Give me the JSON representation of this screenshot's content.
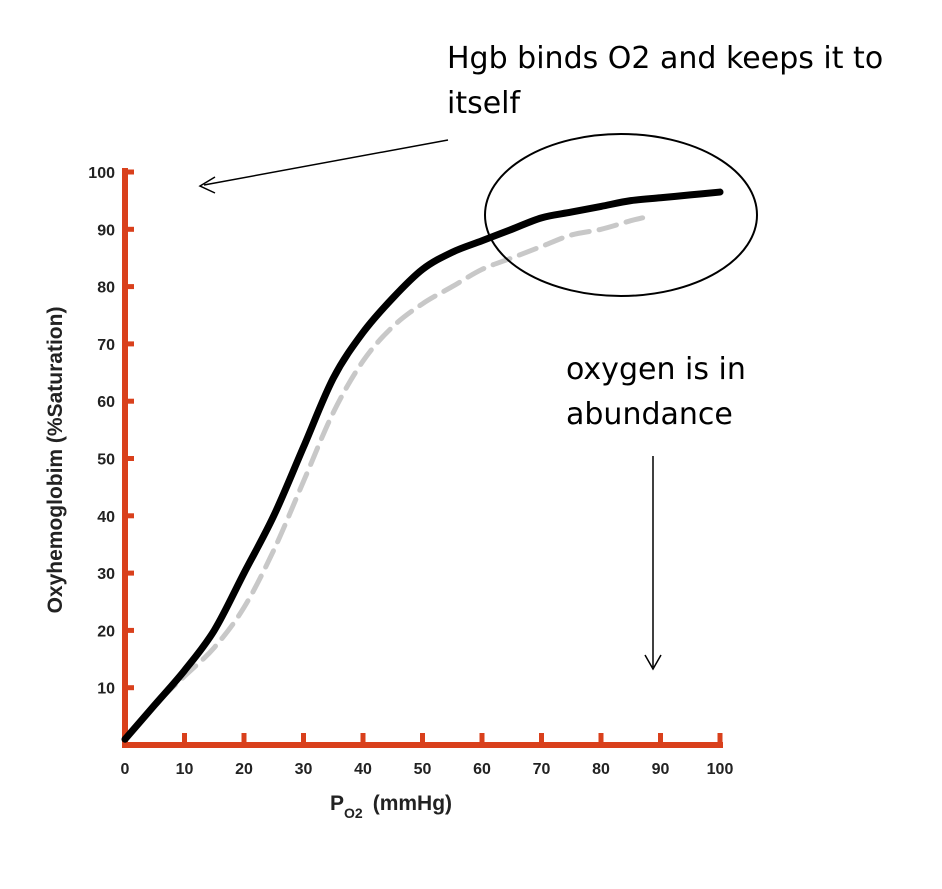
{
  "chart_data": {
    "type": "line",
    "xlabel": "PO2 (mmHg)",
    "xlabel_main": "P",
    "xlabel_sub": "O2",
    "xlabel_unit": "(mmHg)",
    "ylabel": "Oxyhemoglobim (%Saturation)",
    "xlim": [
      0,
      100
    ],
    "ylim": [
      0,
      100
    ],
    "x_ticks": [
      "0",
      "10",
      "20",
      "30",
      "40",
      "50",
      "60",
      "70",
      "80",
      "90",
      "100"
    ],
    "y_ticks": [
      "10",
      "20",
      "30",
      "40",
      "50",
      "60",
      "70",
      "80",
      "90",
      "100"
    ],
    "axis_color": "#d9401c",
    "series": [
      {
        "style": "solid",
        "color": "#000000",
        "x": [
          0,
          5,
          10,
          15,
          20,
          25,
          30,
          35,
          40,
          45,
          50,
          55,
          60,
          65,
          70,
          75,
          80,
          85,
          90,
          95,
          100
        ],
        "y": [
          1,
          7,
          13,
          20,
          30,
          40,
          52,
          64,
          72,
          78,
          83,
          86,
          88,
          90,
          92,
          93,
          94,
          95,
          95.5,
          96,
          96.5
        ]
      },
      {
        "style": "dashed",
        "color": "#c8c8c8",
        "x": [
          0,
          5,
          10,
          15,
          20,
          25,
          30,
          35,
          40,
          45,
          50,
          55,
          60,
          65,
          70,
          75,
          80,
          85,
          87
        ],
        "y": [
          1,
          7,
          12,
          17,
          24,
          34,
          46,
          58,
          67,
          73,
          77,
          80,
          83,
          85,
          87,
          89,
          90,
          91.5,
          92
        ]
      }
    ]
  },
  "annotations": {
    "top_note": [
      "Hgb binds O2 and keeps it to",
      "itself"
    ],
    "right_note": [
      "oxygen is in",
      "abundance"
    ]
  }
}
